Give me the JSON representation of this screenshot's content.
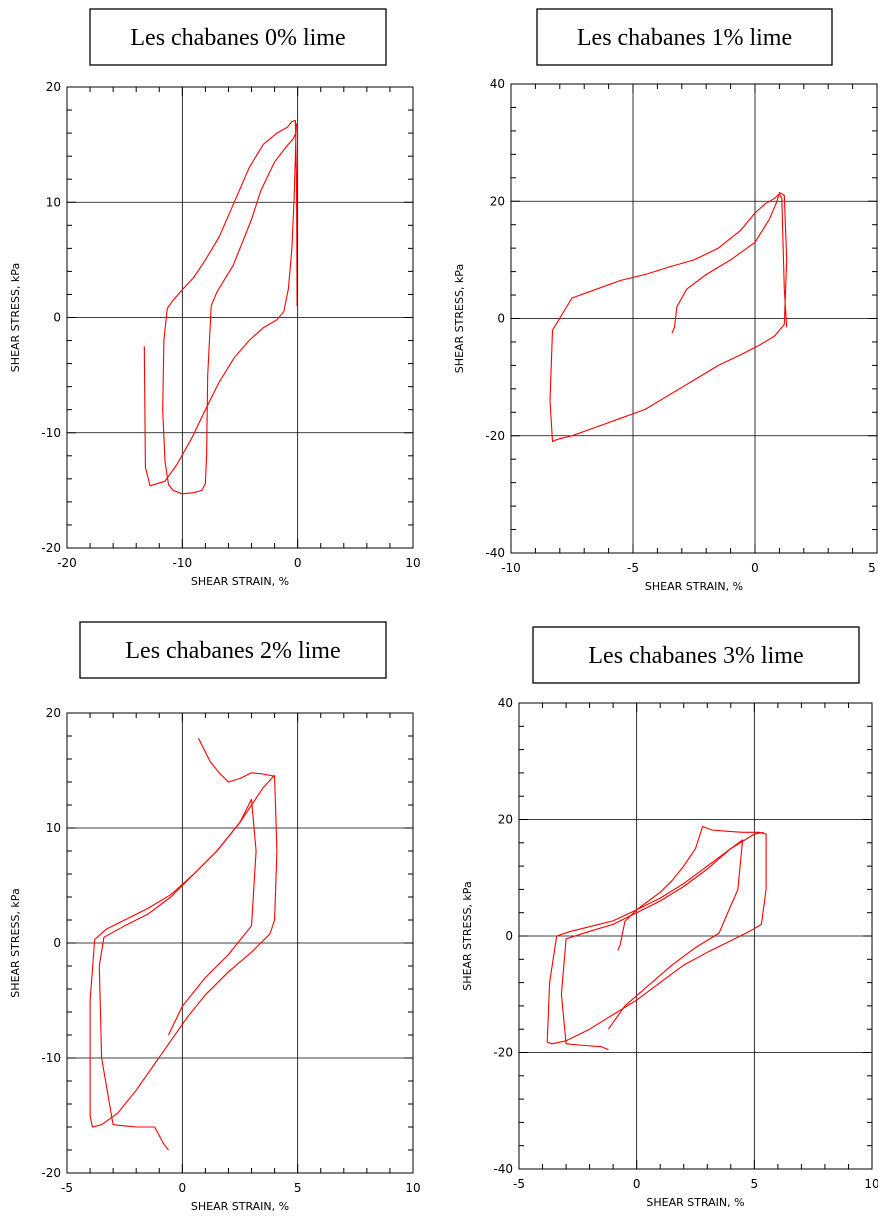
{
  "chart_data": [
    {
      "type": "line",
      "title": "Les chabanes 0% lime",
      "xlabel": "SHEAR STRAIN, %",
      "ylabel": "SHEAR STRESS, kPa",
      "xlim": [
        -20,
        10
      ],
      "ylim": [
        -20,
        20
      ],
      "xticks": [
        -20,
        -10,
        0,
        10
      ],
      "xtick_labels": [
        "-20",
        "-10",
        "0",
        "10"
      ],
      "yticks": [
        -20,
        -10,
        0,
        10,
        20
      ],
      "ytick_labels": [
        "-20",
        "-10",
        "0",
        "10",
        "20"
      ],
      "grid": true,
      "color": "#ff0000",
      "series": [
        {
          "x": [
            -13.3,
            -13.2,
            -12.8,
            -11.5,
            -10.5,
            -9.2,
            -8.0,
            -6.8,
            -5.5,
            -4.2,
            -3.0,
            -1.8,
            -1.2,
            -0.8,
            -0.5,
            -0.3,
            -0.2,
            -0.15,
            -0.1,
            -0.15,
            -0.4,
            -1.0,
            -2.0,
            -3.2,
            -4.0,
            -4.8,
            -5.6,
            -6.4,
            -7.0,
            -7.5,
            -7.8,
            -7.9,
            -8.0,
            -8.3,
            -9.0,
            -10.0,
            -10.8,
            -11.2,
            -11.5,
            -11.7,
            -11.6,
            -11.3,
            -10.8,
            -10.0,
            -9.0,
            -8.0,
            -6.8,
            -5.5,
            -4.2,
            -3.0,
            -1.8,
            -0.9,
            -0.5,
            -0.2,
            -0.1,
            -0.05
          ],
          "y": [
            -2.5,
            -13.0,
            -14.6,
            -14.2,
            -12.8,
            -10.5,
            -8.0,
            -5.6,
            -3.5,
            -2.0,
            -0.9,
            -0.2,
            0.5,
            2.5,
            6.0,
            10.5,
            14.0,
            15.8,
            16.8,
            16.0,
            15.5,
            14.8,
            13.5,
            11.0,
            8.5,
            6.5,
            4.5,
            3.2,
            2.2,
            1.0,
            -5.0,
            -12.0,
            -14.4,
            -15.0,
            -15.2,
            -15.3,
            -15.0,
            -14.5,
            -12.5,
            -8.0,
            -2.0,
            0.8,
            1.5,
            2.4,
            3.5,
            5.0,
            7.0,
            10.0,
            13.0,
            15.0,
            16.0,
            16.5,
            17.0,
            17.1,
            12.0,
            1.0
          ]
        }
      ]
    },
    {
      "type": "line",
      "title": "Les chabanes 1% lime",
      "xlabel": "SHEAR STRAIN, %",
      "ylabel": "SHEAR STRESS, kPa",
      "xlim": [
        -10,
        5
      ],
      "ylim": [
        -40,
        40
      ],
      "xticks": [
        -10,
        -5,
        0,
        5
      ],
      "xtick_labels": [
        "-10",
        "-5",
        "0",
        "5"
      ],
      "yticks": [
        -40,
        -20,
        0,
        20,
        40
      ],
      "ytick_labels": [
        "-40",
        "-20",
        "0",
        "20",
        "40"
      ],
      "grid": true,
      "color": "#ff0000",
      "series": [
        {
          "x": [
            -3.4,
            -3.3,
            -3.2,
            -2.8,
            -2.0,
            -1.0,
            0.0,
            0.6,
            0.9,
            1.0,
            1.2,
            1.3,
            1.2,
            0.8,
            0.2,
            -0.5,
            -1.5,
            -2.5,
            -3.5,
            -4.5,
            -5.5,
            -6.5,
            -7.5,
            -8.0,
            -8.2,
            -8.3,
            -8.4,
            -8.3,
            -7.5,
            -6.5,
            -5.5,
            -4.5,
            -3.5,
            -2.5,
            -1.5,
            -0.6,
            0.0,
            0.4,
            0.8,
            1.0,
            1.1,
            1.2,
            1.3
          ],
          "y": [
            -2.5,
            -1.5,
            2.0,
            5.0,
            7.5,
            10.0,
            13.0,
            17.0,
            20.0,
            21.5,
            21.0,
            10.0,
            -1.0,
            -3.0,
            -4.5,
            -6.0,
            -8.0,
            -10.5,
            -13.0,
            -15.5,
            -17.0,
            -18.5,
            -20.0,
            -20.5,
            -20.8,
            -21.0,
            -14.0,
            -2.0,
            3.5,
            5.0,
            6.5,
            7.5,
            8.8,
            10.0,
            12.0,
            15.0,
            18.0,
            19.5,
            20.5,
            21.2,
            20.5,
            5.0,
            -1.5
          ]
        }
      ]
    },
    {
      "type": "line",
      "title": "Les chabanes 2% lime",
      "xlabel": "SHEAR STRAIN, %",
      "ylabel": "SHEAR STRESS, kPa",
      "xlim": [
        -5,
        10
      ],
      "ylim": [
        -20,
        20
      ],
      "xticks": [
        -5,
        0,
        5,
        10
      ],
      "xtick_labels": [
        "-5",
        "0",
        "5",
        "10"
      ],
      "yticks": [
        -20,
        -10,
        0,
        10,
        20
      ],
      "ytick_labels": [
        "-20",
        "-10",
        "0",
        "10",
        "20"
      ],
      "grid": true,
      "color": "#ff0000",
      "series": [
        {
          "x": [
            0.7,
            0.9,
            1.2,
            1.6,
            2.0,
            2.5,
            3.0,
            3.5,
            4.0,
            4.1,
            4.0,
            3.8,
            3.0,
            2.0,
            1.0,
            0.2,
            -0.5,
            -1.2,
            -2.0,
            -2.8,
            -3.5,
            -3.9,
            -4.0,
            -4.0,
            -3.8,
            -3.3,
            -2.5,
            -1.5,
            -0.5,
            0.5,
            1.5,
            2.5,
            3.5,
            4.0
          ],
          "y": [
            17.8,
            17.0,
            15.8,
            14.8,
            14.0,
            14.3,
            14.8,
            14.7,
            14.5,
            8.0,
            2.0,
            0.8,
            -0.8,
            -2.5,
            -4.5,
            -6.5,
            -8.5,
            -10.5,
            -12.8,
            -14.8,
            -15.8,
            -16.0,
            -15.0,
            -5.0,
            0.3,
            1.2,
            2.0,
            3.0,
            4.2,
            6.0,
            8.0,
            10.5,
            13.5,
            14.6
          ]
        },
        {
          "x": [
            -0.6,
            -0.8,
            -1.2,
            -2.0,
            -3.0,
            -3.5,
            -3.6,
            -3.4,
            -2.5,
            -1.5,
            -0.5,
            0.5,
            1.5,
            2.5,
            3.0,
            3.2,
            3.0,
            2.0,
            1.0,
            0.0,
            -0.6
          ],
          "y": [
            -18.0,
            -17.5,
            -16.0,
            -16.0,
            -15.8,
            -10.0,
            -2.0,
            0.5,
            1.5,
            2.5,
            4.0,
            6.0,
            8.0,
            10.5,
            12.5,
            8.0,
            1.5,
            -1.0,
            -3.0,
            -5.5,
            -8.0
          ]
        }
      ]
    },
    {
      "type": "line",
      "title": "Les chabanes 3% lime",
      "xlabel": "SHEAR STRAIN, %",
      "ylabel": "SHEAR STRESS, kPa",
      "xlim": [
        -5,
        10
      ],
      "ylim": [
        -40,
        40
      ],
      "xticks": [
        -5,
        0,
        5,
        10
      ],
      "xtick_labels": [
        "-5",
        "0",
        "5",
        "10"
      ],
      "yticks": [
        -40,
        -20,
        0,
        20,
        40
      ],
      "ytick_labels": [
        "-40",
        "-20",
        "0",
        "20",
        "40"
      ],
      "grid": true,
      "color": "#ff0000",
      "series": [
        {
          "x": [
            -0.8,
            -0.7,
            -0.5,
            0.0,
            0.5,
            1.0,
            1.5,
            2.0,
            2.5,
            2.8,
            3.2,
            3.8,
            4.5,
            5.2,
            5.5,
            5.5,
            5.3,
            4.8,
            4.0,
            3.0,
            2.0,
            1.0,
            0.0,
            -1.0,
            -2.0,
            -3.0,
            -3.6,
            -3.8,
            -3.7,
            -3.4,
            -2.8,
            -2.0,
            -1.0,
            0.0,
            1.0,
            2.0,
            3.0,
            4.0,
            5.0,
            5.4
          ],
          "y": [
            -2.5,
            -1.5,
            2.5,
            4.5,
            6.0,
            7.5,
            9.5,
            12.0,
            15.0,
            18.8,
            18.2,
            18.0,
            17.8,
            17.8,
            17.5,
            8.0,
            2.0,
            0.8,
            -0.8,
            -2.8,
            -5.0,
            -8.0,
            -11.0,
            -13.5,
            -16.0,
            -18.0,
            -18.5,
            -18.2,
            -8.0,
            0.0,
            0.8,
            1.6,
            2.6,
            4.5,
            6.5,
            9.0,
            12.0,
            15.0,
            17.5,
            17.8
          ]
        },
        {
          "x": [
            -1.2,
            -1.5,
            -2.2,
            -3.0,
            -3.2,
            -3.0,
            -2.0,
            -1.0,
            0.0,
            1.0,
            2.0,
            3.0,
            4.0,
            4.5,
            4.3,
            3.5,
            2.5,
            1.5,
            0.5,
            -0.5,
            -1.2
          ],
          "y": [
            -19.5,
            -19.0,
            -18.8,
            -18.5,
            -10.0,
            -0.5,
            0.8,
            2.0,
            4.0,
            6.0,
            8.5,
            11.5,
            15.0,
            16.5,
            8.0,
            0.5,
            -2.0,
            -5.0,
            -8.5,
            -12.0,
            -16.0
          ]
        }
      ]
    }
  ]
}
